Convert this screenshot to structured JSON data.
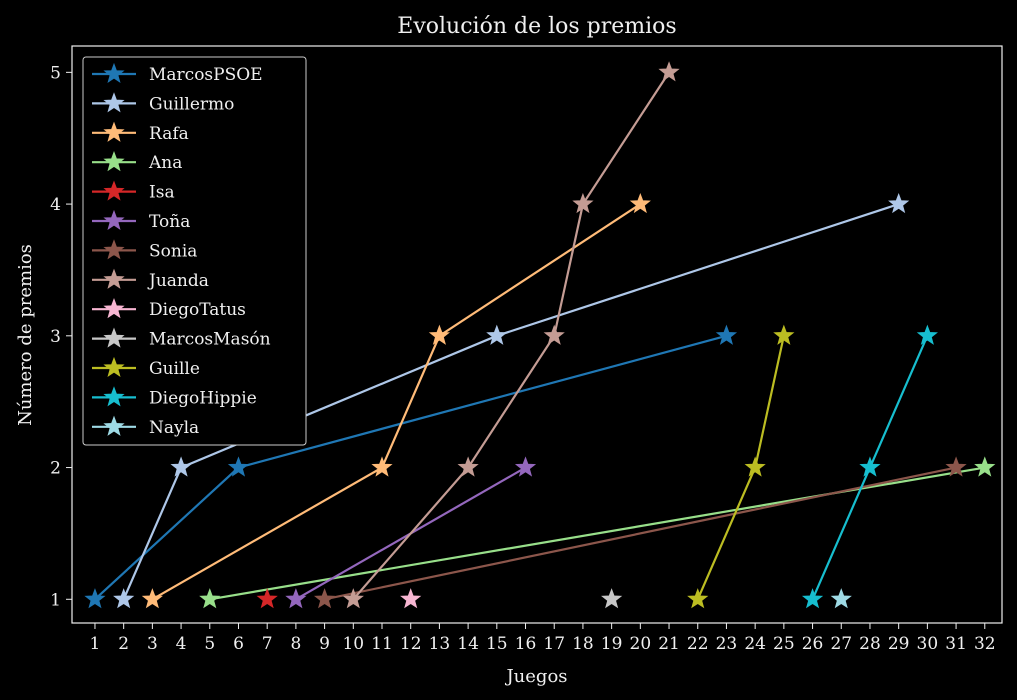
{
  "chart_data": {
    "type": "line",
    "title": "Evolución de los premios",
    "xlabel": "Juegos",
    "ylabel": "Número de premios",
    "x_ticks": [
      1,
      2,
      3,
      4,
      5,
      6,
      7,
      8,
      9,
      10,
      11,
      12,
      13,
      14,
      15,
      16,
      17,
      18,
      19,
      20,
      21,
      22,
      23,
      24,
      25,
      26,
      27,
      28,
      29,
      30,
      31,
      32
    ],
    "y_ticks": [
      1,
      2,
      3,
      4,
      5
    ],
    "xlim": [
      0.2,
      32.6
    ],
    "ylim": [
      0.82,
      5.2
    ],
    "grid": false,
    "legend_position": "top-left",
    "marker": "star",
    "series": [
      {
        "name": "MarcosPSOE",
        "color": "#1f77b4",
        "points": [
          [
            1,
            1
          ],
          [
            6,
            2
          ],
          [
            23,
            3
          ]
        ]
      },
      {
        "name": "Guillermo",
        "color": "#aec7e8",
        "points": [
          [
            2,
            1
          ],
          [
            4,
            2
          ],
          [
            15,
            3
          ],
          [
            29,
            4
          ]
        ]
      },
      {
        "name": "Rafa",
        "color": "#ffbb78",
        "points": [
          [
            3,
            1
          ],
          [
            11,
            2
          ],
          [
            13,
            3
          ],
          [
            20,
            4
          ]
        ]
      },
      {
        "name": "Ana",
        "color": "#98df8a",
        "points": [
          [
            5,
            1
          ],
          [
            32,
            2
          ]
        ]
      },
      {
        "name": "Isa",
        "color": "#d62728",
        "points": [
          [
            7,
            1
          ]
        ]
      },
      {
        "name": "Toña",
        "color": "#9467bd",
        "points": [
          [
            8,
            1
          ],
          [
            16,
            2
          ]
        ]
      },
      {
        "name": "Sonia",
        "color": "#8c564b",
        "points": [
          [
            9,
            1
          ],
          [
            31,
            2
          ]
        ]
      },
      {
        "name": "Juanda",
        "color": "#c49c94",
        "points": [
          [
            10,
            1
          ],
          [
            14,
            2
          ],
          [
            17,
            3
          ],
          [
            18,
            4
          ],
          [
            21,
            5
          ]
        ]
      },
      {
        "name": "DiegoTatus",
        "color": "#f7b6d2",
        "points": [
          [
            12,
            1
          ]
        ]
      },
      {
        "name": "MarcosMasón",
        "color": "#c7c7c7",
        "points": [
          [
            19,
            1
          ]
        ]
      },
      {
        "name": "Guille",
        "color": "#bcbd22",
        "points": [
          [
            22,
            1
          ],
          [
            24,
            2
          ],
          [
            25,
            3
          ]
        ]
      },
      {
        "name": "DiegoHippie",
        "color": "#17becf",
        "points": [
          [
            26,
            1
          ],
          [
            28,
            2
          ],
          [
            30,
            3
          ]
        ]
      },
      {
        "name": "Nayla",
        "color": "#9edae5",
        "points": [
          [
            27,
            1
          ]
        ]
      }
    ]
  }
}
